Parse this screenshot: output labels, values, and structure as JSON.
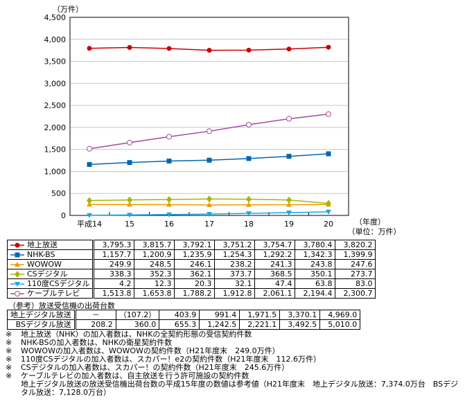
{
  "chart_data": {
    "type": "line",
    "yunit": "（万件）",
    "xunit": "（年度）",
    "unit_note": "（単位：万件）",
    "categories": [
      "平成14",
      "15",
      "16",
      "17",
      "18",
      "19",
      "20"
    ],
    "ylim": [
      0,
      4500
    ],
    "yticks": [
      "0",
      "500",
      "1,000",
      "1,500",
      "2,000",
      "2,500",
      "3,000",
      "3,500",
      "4,000",
      "4,500"
    ],
    "grid": true,
    "series": [
      {
        "name": "地上放送",
        "color": "#cc0000",
        "marker": "circle-filled",
        "values": [
          3795.3,
          3815.7,
          3792.1,
          3751.2,
          3754.7,
          3780.4,
          3820.2
        ],
        "labels": [
          "3,795.3",
          "3,815.7",
          "3,792.1",
          "3,751.2",
          "3,754.7",
          "3,780.4",
          "3,820.2"
        ]
      },
      {
        "name": "NHK-BS",
        "color": "#0066b3",
        "marker": "square",
        "values": [
          1157.7,
          1200.9,
          1235.9,
          1254.3,
          1292.2,
          1342.3,
          1399.9
        ],
        "labels": [
          "1,157.7",
          "1,200.9",
          "1,235.9",
          "1,254.3",
          "1,292.2",
          "1,342.3",
          "1,399.9"
        ]
      },
      {
        "name": "WOWOW",
        "color": "#f39800",
        "marker": "triangle-up",
        "values": [
          249.9,
          248.5,
          246.1,
          238.2,
          241.3,
          243.8,
          247.6
        ],
        "labels": [
          "249.9",
          "248.5",
          "246.1",
          "238.2",
          "241.3",
          "243.8",
          "247.6"
        ]
      },
      {
        "name": "CSデジタル",
        "color": "#a5b800",
        "marker": "diamond",
        "values": [
          338.3,
          352.3,
          362.1,
          373.7,
          368.5,
          350.1,
          273.7
        ],
        "labels": [
          "338.3",
          "352.3",
          "362.1",
          "373.7",
          "368.5",
          "350.1",
          "273.7"
        ]
      },
      {
        "name": "110度CSデジタル",
        "color": "#1aa7e0",
        "marker": "triangle-down",
        "values": [
          4.2,
          12.3,
          20.3,
          32.1,
          47.4,
          63.8,
          83.0
        ],
        "labels": [
          "4.2",
          "12.3",
          "20.3",
          "32.1",
          "47.4",
          "63.8",
          "83.0"
        ]
      },
      {
        "name": "ケーブルテレビ",
        "color": "#a24b9e",
        "marker": "circle-open",
        "values": [
          1513.8,
          1653.8,
          1788.2,
          1912.8,
          2061.1,
          2194.4,
          2300.7
        ],
        "labels": [
          "1,513.8",
          "1,653.8",
          "1,788.2",
          "1,912.8",
          "2,061.1",
          "2,194.4",
          "2,300.7"
        ]
      }
    ]
  },
  "reference": {
    "title": "（参考）放送受信機の出荷台数",
    "rows": [
      {
        "name": "地上デジタル放送",
        "values": [
          "－",
          "（107.2）",
          "403.9",
          "991.4",
          "1,971.5",
          "3,370.1",
          "4,969.0"
        ]
      },
      {
        "name": "BSデジタル放送",
        "values": [
          "208.2",
          "360.0",
          "655.3",
          "1,242.5",
          "2,221.1",
          "3,492.5",
          "5,010.0"
        ]
      }
    ]
  },
  "notes": {
    "mark": "※",
    "items": [
      "地上放送（NHK）の加入者数は、NHKの全契約形態の受信契約件数",
      "NHK-BSの加入者数は、NHKの衛星契約件数",
      "WOWOWの加入者数は、WOWOWの契約件数（H21年度末　249.0万件）",
      "110度CSデジタルの加入者数は、スカパー！e2の契約件数（H21年度末　112.6万件）",
      "CSデジタルの加入者数は、スカパー！の契約件数（H21年度末　245.6万件）",
      "ケーブルテレビの加入者数は、自主放送を行う許可施設の契約件数",
      "地上デジタル放送の放送受信機出荷台数の平成15年度の数値は参考値（H21年度末　地上デジタル放送：7,374.0万台　BSデジタル放送：7,128.0万台）"
    ]
  }
}
